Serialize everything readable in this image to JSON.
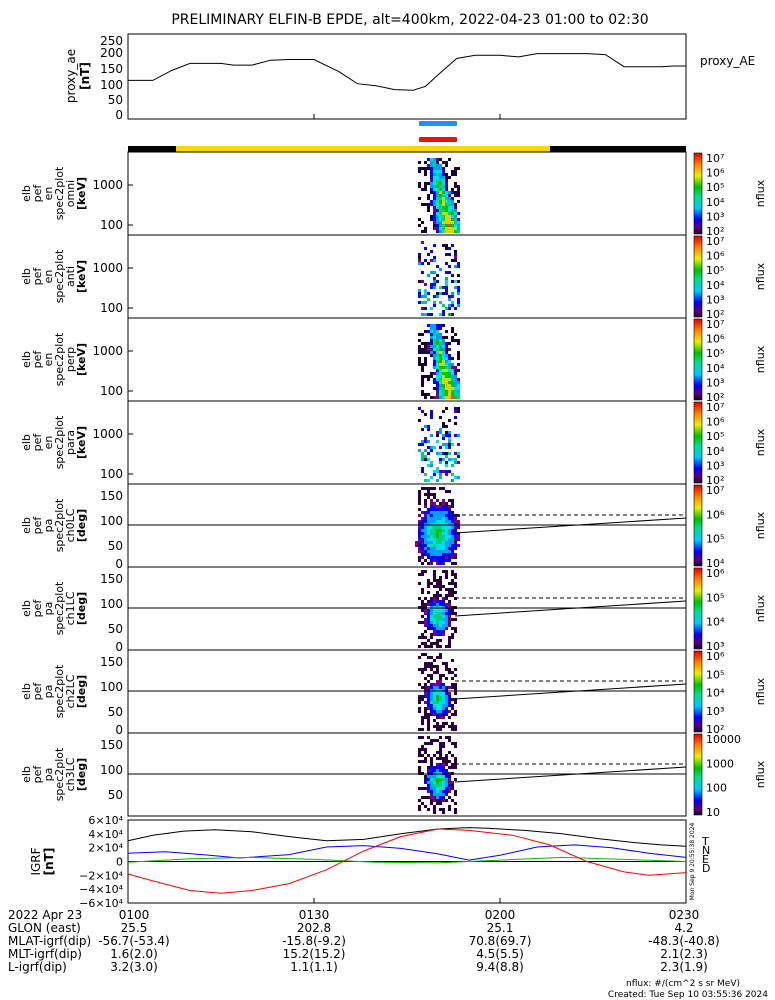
{
  "title": "PRELIMINARY ELFIN-B EPDE, alt=400km, 2022-04-23 01:00 to 02:30",
  "colors": {
    "frame": "#000000",
    "mode_bar_black": "#000000",
    "mode_bar_yellow": "#ffd700",
    "bar_blue": "#1e90ff",
    "bar_red": "#e8120c",
    "igrf_T": "#000000",
    "igrf_N": "#0000ff",
    "igrf_E": "#00c000",
    "igrf_D": "#ff0000"
  },
  "chart_data": [
    {
      "type": "line",
      "panel": "proxy_ae",
      "ylabel": [
        "proxy_ae",
        "[nT]"
      ],
      "legend": "proxy_AE",
      "yticks": [
        "250",
        "200",
        "150",
        "100",
        "50",
        "0"
      ],
      "ylim": [
        0,
        260
      ],
      "x_minutes": [
        0,
        4,
        7,
        10,
        13,
        15,
        17,
        20,
        23,
        26,
        30,
        34,
        37,
        40,
        43,
        46,
        48,
        50,
        53,
        56,
        60,
        63,
        66,
        68,
        71,
        74,
        77,
        80,
        83,
        86,
        88,
        90
      ],
      "values": [
        118,
        118,
        148,
        170,
        170,
        170,
        165,
        165,
        180,
        182,
        182,
        145,
        108,
        102,
        90,
        88,
        100,
        135,
        185,
        195,
        195,
        190,
        200,
        200,
        200,
        200,
        197,
        160,
        160,
        160,
        162,
        162
      ]
    },
    {
      "type": "heatmap",
      "panel": "spectrogram",
      "ylabel": [
        "elb",
        "pef",
        "en",
        "spec2plot",
        "omni",
        "[keV]"
      ],
      "yticks": [
        "1000",
        "100"
      ],
      "zlabel": "nflux",
      "zticks": [
        "10⁷",
        "10⁶",
        "10⁵",
        "10⁴",
        "10³",
        "10²"
      ]
    },
    {
      "type": "heatmap",
      "panel": "spectrogram",
      "ylabel": [
        "elb",
        "pef",
        "en",
        "spec2plot",
        "anti",
        "[keV]"
      ],
      "yticks": [
        "1000",
        "100"
      ],
      "zlabel": "nflux",
      "zticks": [
        "10⁷",
        "10⁶",
        "10⁵",
        "10⁴",
        "10³",
        "10²"
      ]
    },
    {
      "type": "heatmap",
      "panel": "spectrogram",
      "ylabel": [
        "elb",
        "pef",
        "en",
        "spec2plot",
        "perp",
        "[keV]"
      ],
      "yticks": [
        "1000",
        "100"
      ],
      "zlabel": "nflux",
      "zticks": [
        "10⁷",
        "10⁶",
        "10⁵",
        "10⁴",
        "10³",
        "10²"
      ]
    },
    {
      "type": "heatmap",
      "panel": "spectrogram",
      "ylabel": [
        "elb",
        "pef",
        "en",
        "spec2plot",
        "para",
        "[keV]"
      ],
      "yticks": [
        "1000",
        "100"
      ],
      "zlabel": "nflux",
      "zticks": [
        "10⁷",
        "10⁶",
        "10⁵",
        "10⁴",
        "10³",
        "10²"
      ]
    },
    {
      "type": "heatmap",
      "panel": "pitch_angle",
      "ylabel": [
        "elb",
        "pef",
        "pa",
        "spec2plot",
        "ch0LC",
        "[deg]"
      ],
      "yticks": [
        "150",
        "100",
        "50",
        "0"
      ],
      "zlabel": "nflux",
      "zticks": [
        "10⁷",
        "10⁶",
        "10⁵",
        "10⁴"
      ]
    },
    {
      "type": "heatmap",
      "panel": "pitch_angle",
      "ylabel": [
        "elb",
        "pef",
        "pa",
        "spec2plot",
        "ch1LC",
        "[deg]"
      ],
      "yticks": [
        "150",
        "100",
        "50",
        "0"
      ],
      "zlabel": "nflux",
      "zticks": [
        "10⁶",
        "10⁵",
        "10⁴",
        "10³"
      ]
    },
    {
      "type": "heatmap",
      "panel": "pitch_angle",
      "ylabel": [
        "elb",
        "pef",
        "pa",
        "spec2plot",
        "ch2LC",
        "[deg]"
      ],
      "yticks": [
        "150",
        "100",
        "50",
        "0"
      ],
      "zlabel": "nflux",
      "zticks": [
        "10⁶",
        "10⁵",
        "10⁴",
        "10³",
        "10²"
      ]
    },
    {
      "type": "heatmap",
      "panel": "pitch_angle",
      "ylabel": [
        "elb",
        "pef",
        "pa",
        "spec2plot",
        "ch3LC",
        "[deg]"
      ],
      "yticks": [
        "150",
        "100",
        "50"
      ],
      "zlabel": "nflux",
      "zticks": [
        "10000",
        "1000",
        "100",
        "10"
      ]
    },
    {
      "type": "line",
      "panel": "igrf",
      "ylabel": [
        "IGRF",
        "[nT]"
      ],
      "yticks": [
        "6×10⁴",
        "4×10⁴",
        "2×10⁴",
        "0",
        "−2×10⁴",
        "−4×10⁴",
        "−6×10⁴"
      ],
      "ylim": [
        -60000,
        60000
      ],
      "legend": [
        "T",
        "N",
        "E",
        "D"
      ],
      "side_label": "Mon Sep 9 20:55:38 2024",
      "series": [
        {
          "name": "T",
          "x_minutes": [
            0,
            4,
            9,
            14,
            20,
            26,
            32,
            38,
            44,
            50,
            55,
            58,
            64,
            70,
            76,
            82,
            86,
            90
          ],
          "values": [
            30000,
            38000,
            44000,
            46000,
            43000,
            36000,
            30000,
            32000,
            40000,
            47000,
            49000,
            48000,
            45000,
            40000,
            33000,
            27000,
            24000,
            22000
          ]
        },
        {
          "name": "N",
          "x_minutes": [
            0,
            6,
            12,
            18,
            26,
            32,
            38,
            44,
            50,
            55,
            60,
            66,
            72,
            78,
            84,
            90
          ],
          "values": [
            12000,
            14000,
            10000,
            5000,
            10000,
            21000,
            23000,
            19000,
            11000,
            2000,
            9000,
            21000,
            24000,
            20000,
            12000,
            6000
          ]
        },
        {
          "name": "E",
          "x_minutes": [
            0,
            10,
            20,
            30,
            40,
            50,
            60,
            70,
            80,
            90
          ],
          "values": [
            -1000,
            4000,
            6000,
            3000,
            -1000,
            -2000,
            2000,
            6000,
            3000,
            0
          ]
        },
        {
          "name": "D",
          "x_minutes": [
            0,
            4,
            10,
            15,
            20,
            26,
            32,
            38,
            44,
            50,
            55,
            62,
            68,
            74,
            80,
            84,
            87,
            90
          ],
          "values": [
            -18000,
            -28000,
            -42000,
            -46000,
            -42000,
            -32000,
            -12000,
            15000,
            36000,
            47000,
            45000,
            38000,
            24000,
            0,
            -15000,
            -20000,
            -18000,
            -16000
          ]
        }
      ]
    }
  ],
  "time_axis": {
    "ticks": [
      "0100",
      "0130",
      "0200",
      "0230"
    ],
    "rows": [
      {
        "label": "2022 Apr 23",
        "values": [
          "0100",
          "0130",
          "0200",
          "0230"
        ]
      },
      {
        "label": "GLON (east)",
        "values": [
          "25.5",
          "202.8",
          "25.1",
          "4.2"
        ]
      },
      {
        "label": "MLAT-igrf(dip)",
        "values": [
          "-56.7(-53.4)",
          "-15.8(-9.2)",
          "70.8(69.7)",
          "-48.3(-40.8)"
        ]
      },
      {
        "label": "MLT-igrf(dip)",
        "values": [
          "1.6(2.0)",
          "15.2(15.2)",
          "4.5(5.5)",
          "2.1(2.3)"
        ]
      },
      {
        "label": "L-igrf(dip)",
        "values": [
          "3.2(3.0)",
          "1.1(1.1)",
          "9.4(8.8)",
          "2.3(1.9)"
        ]
      }
    ]
  },
  "footer": {
    "units": "nflux: #/(cm^2 s sr MeV)",
    "created": "Created: Tue Sep 10 03:55:36 2024"
  }
}
